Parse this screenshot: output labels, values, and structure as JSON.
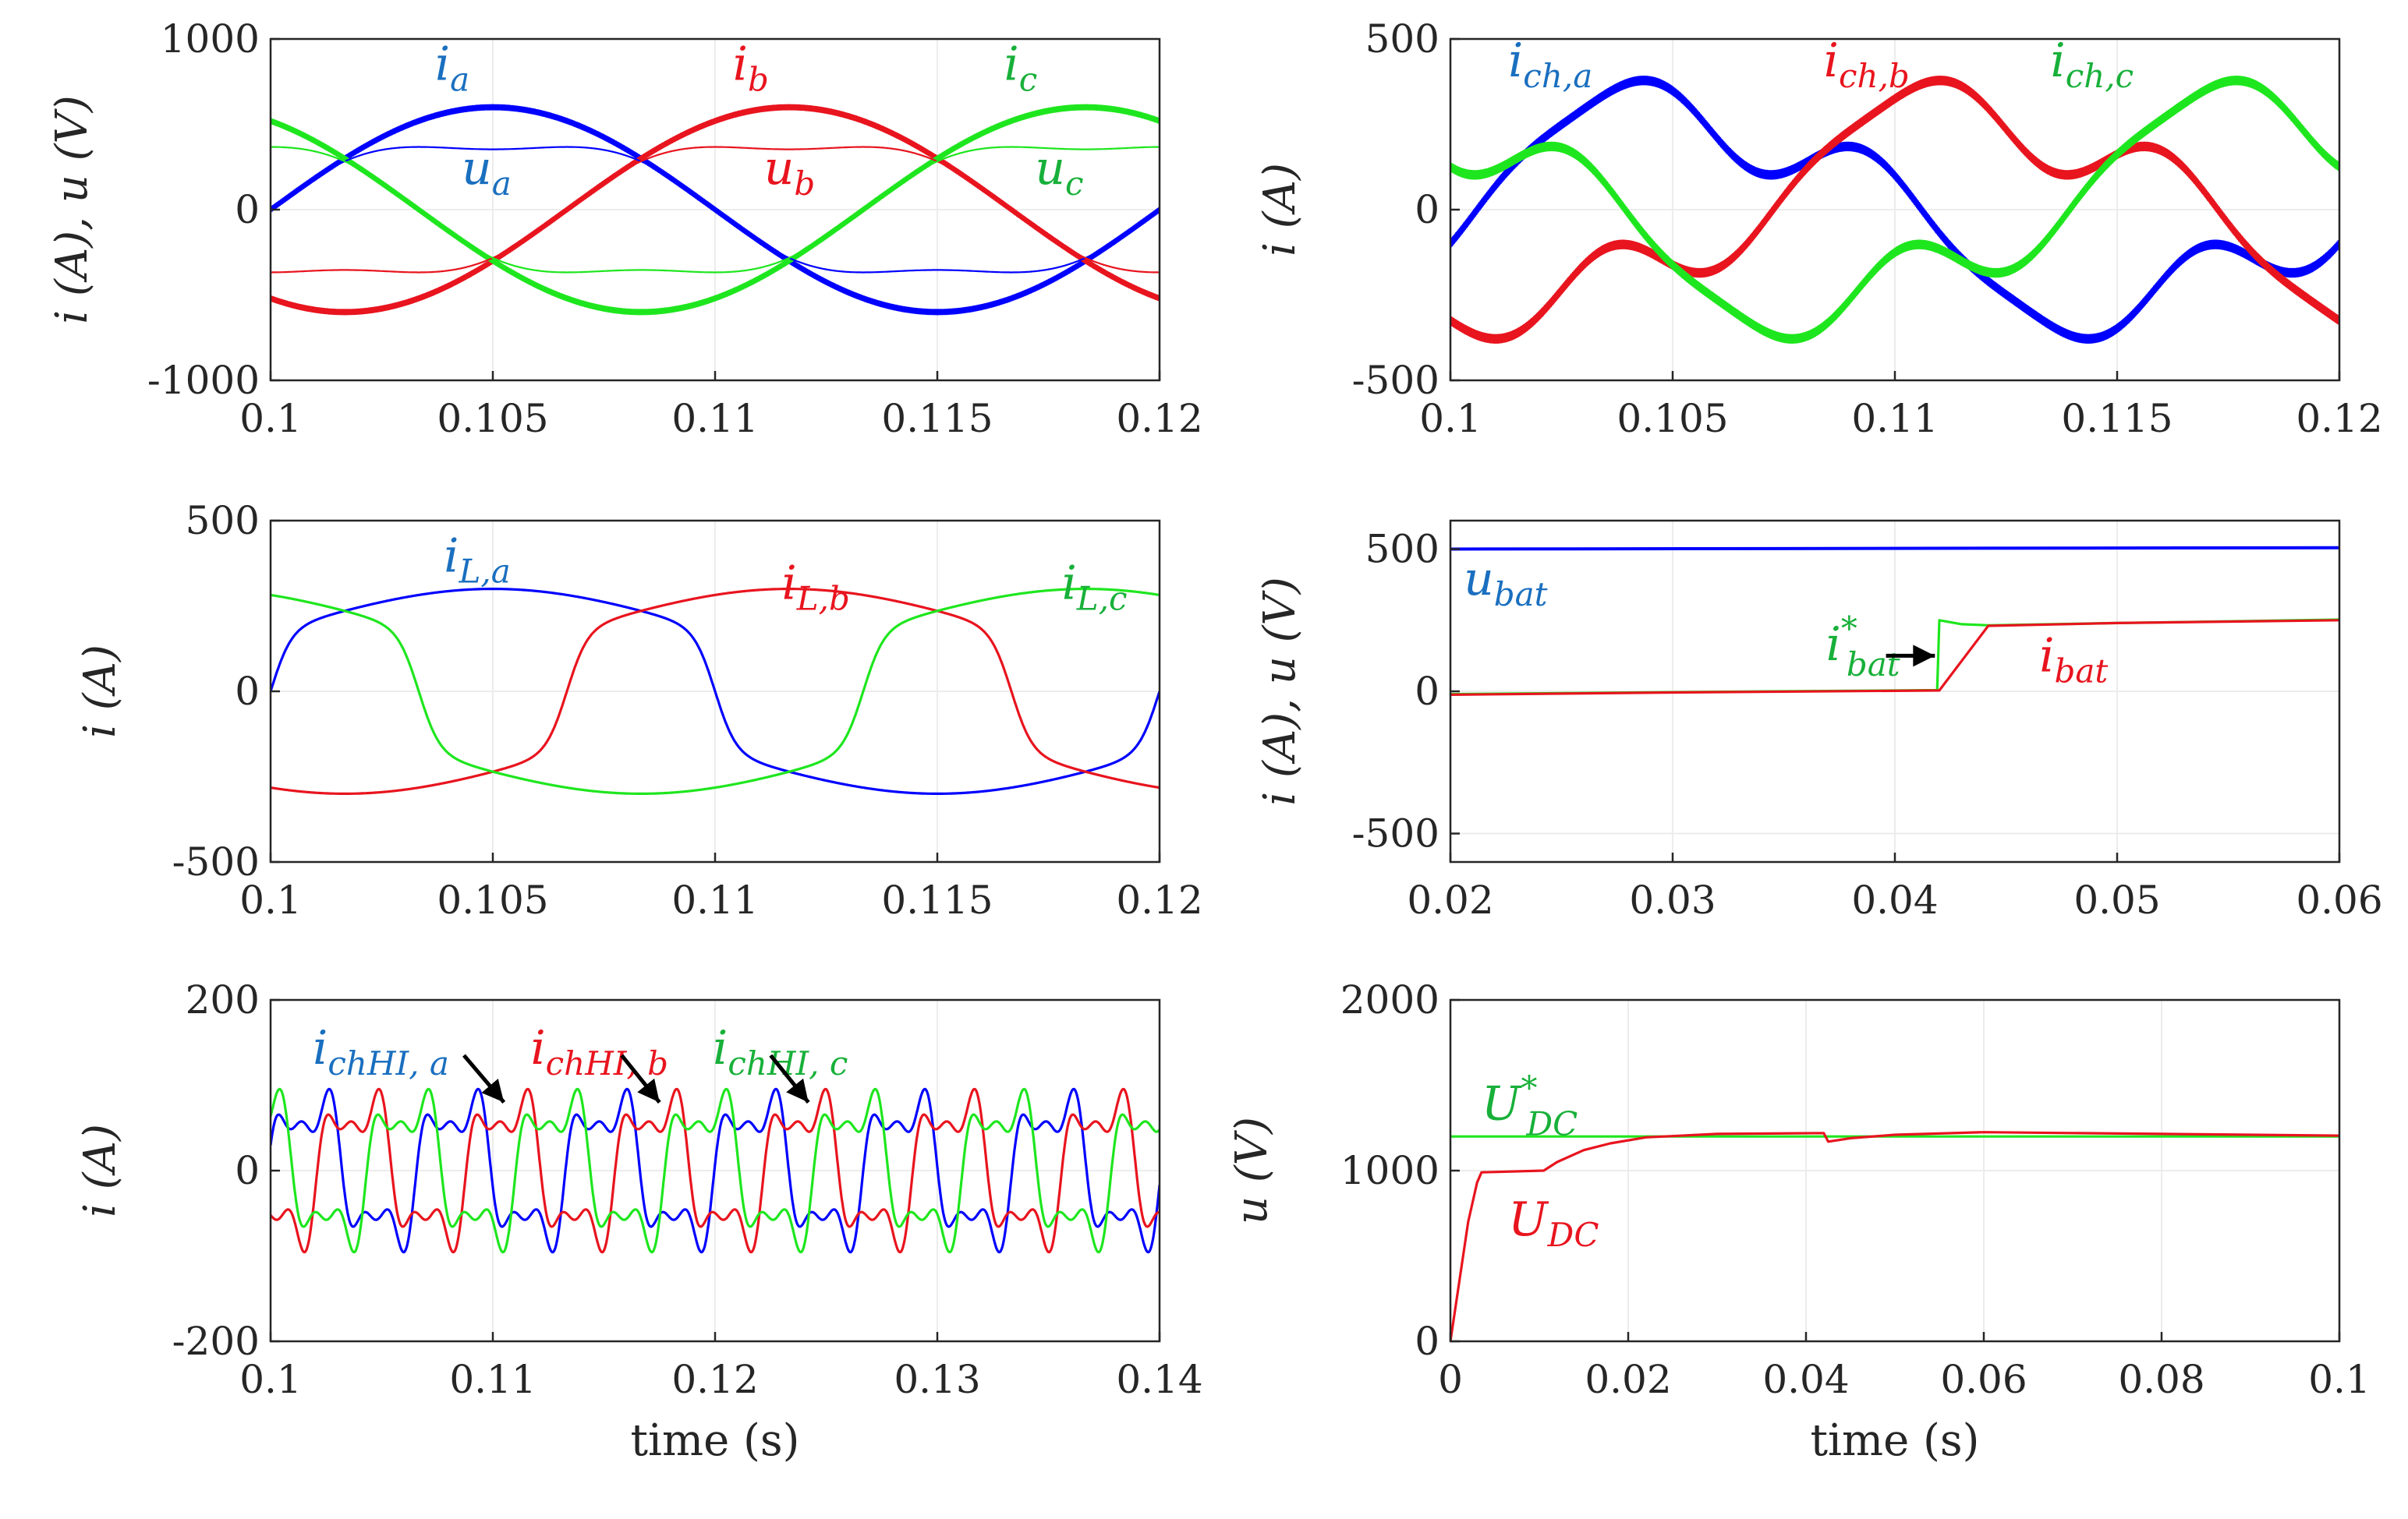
{
  "colors": {
    "blue": "#0000ff",
    "red": "#e8141e",
    "green": "#1ee61e",
    "brown": "#8a5a1e",
    "label_blue": "#1a6fbf",
    "label_red": "#e8141e",
    "label_green": "#18b03a"
  },
  "chart_data": [
    {
      "type": "line",
      "id": "p1",
      "xlabel": "",
      "ylabel_main": "i (A), u (V)",
      "xlim": [
        0.1,
        0.12
      ],
      "ylim": [
        -1000,
        1000
      ],
      "xticks": [
        "0.1",
        "0.105",
        "0.11",
        "0.115",
        "0.12"
      ],
      "yticks": [
        "1000",
        "0",
        "-1000"
      ],
      "series": [
        {
          "name": "i_a",
          "color": "blue",
          "kind": "sine",
          "amp": 600,
          "phase_deg": 0,
          "ripple": 14
        },
        {
          "name": "i_b",
          "color": "red",
          "kind": "sine",
          "amp": 600,
          "phase_deg": -120,
          "ripple": 14
        },
        {
          "name": "i_c",
          "color": "green",
          "kind": "sine",
          "amp": 600,
          "phase_deg": 120,
          "ripple": 14
        },
        {
          "name": "u_a",
          "color": "blue",
          "kind": "flat",
          "amp": 300,
          "phase_deg": 0
        },
        {
          "name": "u_b",
          "color": "red",
          "kind": "flat",
          "amp": 300,
          "phase_deg": -120
        },
        {
          "name": "u_c",
          "color": "green",
          "kind": "flat",
          "amp": 300,
          "phase_deg": 120
        }
      ],
      "annotations": [
        {
          "base": "i",
          "sub": "a",
          "color": "label_blue",
          "x": 0.1037,
          "y": 760
        },
        {
          "base": "i",
          "sub": "b",
          "color": "label_red",
          "x": 0.1104,
          "y": 760
        },
        {
          "base": "i",
          "sub": "c",
          "color": "label_green",
          "x": 0.1165,
          "y": 760
        },
        {
          "base": "u",
          "sub": "a",
          "color": "label_blue",
          "x": 0.1043,
          "y": 150
        },
        {
          "base": "u",
          "sub": "b",
          "color": "label_red",
          "x": 0.1111,
          "y": 150
        },
        {
          "base": "u",
          "sub": "c",
          "color": "label_green",
          "x": 0.1172,
          "y": 150
        }
      ]
    },
    {
      "type": "line",
      "id": "p2",
      "xlabel": "",
      "ylabel_main": "i (A)",
      "xlim": [
        0.1,
        0.12
      ],
      "ylim": [
        -500,
        500
      ],
      "xticks": [
        "0.1",
        "0.105",
        "0.11",
        "0.115",
        "0.12"
      ],
      "yticks": [
        "500",
        "0",
        "-500"
      ],
      "series": [
        {
          "name": "i_ch,a",
          "color": "blue",
          "kind": "ch",
          "phase_deg": 0,
          "ripple": 12
        },
        {
          "name": "i_ch,b",
          "color": "red",
          "kind": "ch",
          "phase_deg": -120,
          "ripple": 12
        },
        {
          "name": "i_ch,c",
          "color": "green",
          "kind": "ch",
          "phase_deg": 120,
          "ripple": 12
        }
      ],
      "annotations": [
        {
          "base": "i",
          "sub": "ch,a",
          "color": "label_blue",
          "x": 0.1013,
          "y": 390
        },
        {
          "base": "i",
          "sub": "ch,b",
          "color": "label_red",
          "x": 0.1084,
          "y": 390
        },
        {
          "base": "i",
          "sub": "ch,c",
          "color": "label_green",
          "x": 0.1135,
          "y": 390
        }
      ]
    },
    {
      "type": "line",
      "id": "p3",
      "xlabel": "",
      "ylabel_main": "i (A)",
      "xlim": [
        0.1,
        0.12
      ],
      "ylim": [
        -500,
        500
      ],
      "xticks": [
        "0.1",
        "0.105",
        "0.11",
        "0.115",
        "0.12"
      ],
      "yticks": [
        "500",
        "0",
        "-500"
      ],
      "series": [
        {
          "name": "i_L,a",
          "color": "blue",
          "kind": "trap",
          "phase_deg": 0
        },
        {
          "name": "i_L,b",
          "color": "red",
          "kind": "trap",
          "phase_deg": -120
        },
        {
          "name": "i_L,c",
          "color": "green",
          "kind": "trap",
          "phase_deg": 120
        }
      ],
      "annotations": [
        {
          "base": "i",
          "sub": "L,a",
          "color": "label_blue",
          "x": 0.1039,
          "y": 350
        },
        {
          "base": "i",
          "sub": "L,b",
          "color": "label_red",
          "x": 0.1115,
          "y": 270
        },
        {
          "base": "i",
          "sub": "L,c",
          "color": "label_green",
          "x": 0.1178,
          "y": 270
        }
      ]
    },
    {
      "type": "line",
      "id": "p4",
      "xlabel": "",
      "ylabel_main": "i (A), u (V)",
      "xlim": [
        0.02,
        0.06
      ],
      "ylim": [
        -600,
        600
      ],
      "xticks": [
        "0.02",
        "0.03",
        "0.04",
        "0.05",
        "0.06"
      ],
      "yticks": [
        "500",
        "0",
        "-500"
      ],
      "series": [
        {
          "name": "u_bat",
          "color": "blue",
          "points": [
            [
              0.02,
              500
            ],
            [
              0.06,
              505
            ]
          ]
        },
        {
          "name": "i*_bat",
          "color": "green",
          "points": [
            [
              0.02,
              -10
            ],
            [
              0.03,
              -3
            ],
            [
              0.0419,
              4
            ],
            [
              0.042,
              250
            ],
            [
              0.043,
              236
            ],
            [
              0.0442,
              232
            ],
            [
              0.05,
              240
            ],
            [
              0.06,
              252
            ]
          ]
        },
        {
          "name": "i_bat",
          "color": "red",
          "points": [
            [
              0.02,
              -12
            ],
            [
              0.03,
              -4
            ],
            [
              0.042,
              3
            ],
            [
              0.0442,
              230
            ],
            [
              0.05,
              240
            ],
            [
              0.06,
              250
            ]
          ]
        }
      ],
      "annotations": [
        {
          "base": "u",
          "sub": "bat",
          "color": "label_blue",
          "x": 0.0206,
          "y": 340
        },
        {
          "base": "i",
          "sub": "bat",
          "sup": "*",
          "color": "label_green",
          "x": 0.0369,
          "y": 110
        },
        {
          "base": "i",
          "sub": "bat",
          "color": "label_red",
          "x": 0.0465,
          "y": 70
        }
      ],
      "arrows": [
        {
          "from": [
            0.0396,
            125
          ],
          "to": [
            0.0418,
            125
          ]
        }
      ]
    },
    {
      "type": "line",
      "id": "p5",
      "xlabel": "time (s)",
      "ylabel_main": "i (A)",
      "xlim": [
        0.1,
        0.14
      ],
      "ylim": [
        -200,
        200
      ],
      "xticks": [
        "0.1",
        "0.11",
        "0.12",
        "0.13",
        "0.14"
      ],
      "yticks": [
        "200",
        "0",
        "-200"
      ],
      "series": [
        {
          "name": "i_chHI,a",
          "color": "blue",
          "kind": "hi",
          "phase_deg": 0
        },
        {
          "name": "i_chHI,b",
          "color": "red",
          "kind": "hi",
          "phase_deg": -120
        },
        {
          "name": "i_chHI,c",
          "color": "green",
          "kind": "hi",
          "phase_deg": 120
        }
      ],
      "annotations": [
        {
          "base": "i",
          "sub": "chHI, a",
          "color": "label_blue",
          "x": 0.1019,
          "y": 125
        },
        {
          "base": "i",
          "sub": "chHI, b",
          "color": "label_red",
          "x": 0.1117,
          "y": 125
        },
        {
          "base": "i",
          "sub": "chHI, c",
          "color": "label_green",
          "x": 0.1199,
          "y": 125
        }
      ],
      "arrows": [
        {
          "from": [
            0.1087,
            135
          ],
          "to": [
            0.1105,
            80
          ]
        },
        {
          "from": [
            0.1158,
            135
          ],
          "to": [
            0.1175,
            80
          ]
        },
        {
          "from": [
            0.1225,
            135
          ],
          "to": [
            0.1242,
            80
          ]
        }
      ]
    },
    {
      "type": "line",
      "id": "p6",
      "xlabel": "time (s)",
      "ylabel_main": "u (V)",
      "xlim": [
        0,
        0.1
      ],
      "ylim": [
        0,
        2000
      ],
      "xticks": [
        "0",
        "0.02",
        "0.04",
        "0.06",
        "0.08",
        "0.1"
      ],
      "yticks": [
        "2000",
        "1000",
        "0"
      ],
      "series": [
        {
          "name": "U*_DC",
          "color": "green",
          "points": [
            [
              0,
              1200
            ],
            [
              0.1,
              1200
            ]
          ]
        },
        {
          "name": "U_DC",
          "color": "red",
          "points": [
            [
              0,
              0
            ],
            [
              0.001,
              350
            ],
            [
              0.002,
              700
            ],
            [
              0.003,
              930
            ],
            [
              0.0035,
              990
            ],
            [
              0.0105,
              1000
            ],
            [
              0.012,
              1050
            ],
            [
              0.015,
              1120
            ],
            [
              0.018,
              1160
            ],
            [
              0.022,
              1195
            ],
            [
              0.03,
              1215
            ],
            [
              0.042,
              1220
            ],
            [
              0.0425,
              1170
            ],
            [
              0.045,
              1190
            ],
            [
              0.05,
              1210
            ],
            [
              0.06,
              1225
            ],
            [
              0.07,
              1220
            ],
            [
              0.08,
              1215
            ],
            [
              0.09,
              1210
            ],
            [
              0.1,
              1205
            ]
          ]
        }
      ],
      "annotations": [
        {
          "base": "U",
          "sub": "DC",
          "sup": "*",
          "color": "label_green",
          "x": 0.0035,
          "y": 1300
        },
        {
          "base": "U",
          "sub": "DC",
          "color": "label_red",
          "x": 0.0065,
          "y": 620
        }
      ]
    }
  ]
}
